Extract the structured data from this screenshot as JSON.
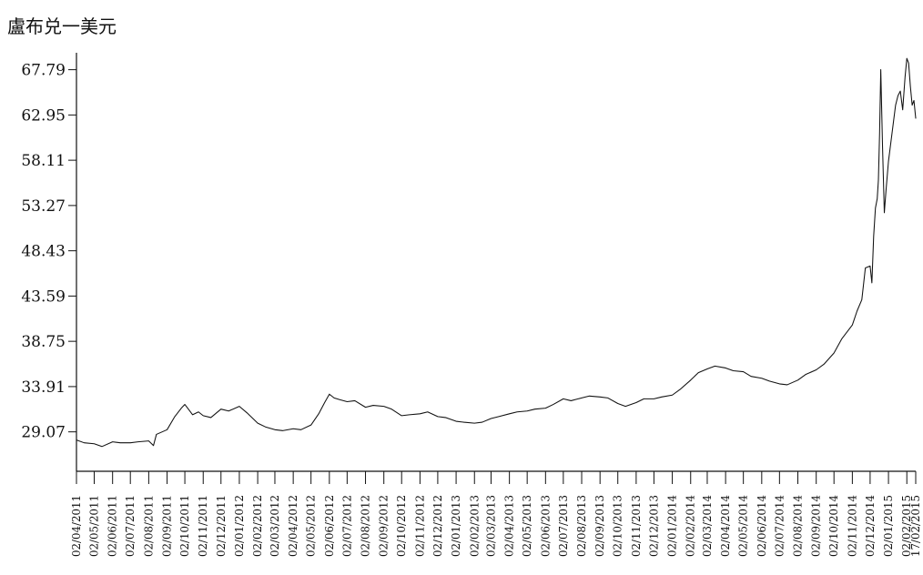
{
  "chart_data": {
    "type": "line",
    "title": "盧布兑一美元",
    "xlabel": "",
    "ylabel": "",
    "ylim": [
      26.8,
      69.6
    ],
    "grid": false,
    "legend": "none",
    "y_ticks": [
      "67.79",
      "62.95",
      "58.11",
      "53.27",
      "48.43",
      "43.59",
      "38.75",
      "33.91",
      "29.07"
    ],
    "x_ticks": [
      "02/04/2011",
      "02/05/2011",
      "02/06/2011",
      "02/07/2011",
      "02/08/2011",
      "02/09/2011",
      "02/10/2011",
      "02/11/2011",
      "02/12/2011",
      "02/01/2012",
      "02/02/2012",
      "02/03/2012",
      "02/04/2012",
      "02/05/2012",
      "02/06/2012",
      "02/07/2012",
      "02/08/2012",
      "02/09/2012",
      "02/10/2012",
      "02/11/2012",
      "02/12/2012",
      "02/01/2013",
      "02/02/2013",
      "02/03/2013",
      "02/04/2013",
      "02/05/2013",
      "02/06/2013",
      "02/07/2013",
      "02/08/2013",
      "02/09/2013",
      "02/10/2013",
      "02/11/2013",
      "02/12/2013",
      "02/01/2014",
      "02/02/2014",
      "02/03/2014",
      "02/04/2014",
      "02/05/2014",
      "02/06/2014",
      "02/07/2014",
      "02/08/2014",
      "02/09/2014",
      "02/10/2014",
      "02/11/2014",
      "02/12/2014",
      "02/01/2015",
      "02/02/2015",
      "17/02/2015"
    ],
    "x": [
      "02/04/2011",
      "15/04/2011",
      "02/05/2011",
      "15/05/2011",
      "02/06/2011",
      "15/06/2011",
      "02/07/2011",
      "15/07/2011",
      "02/08/2011",
      "10/08/2011",
      "15/08/2011",
      "02/09/2011",
      "15/09/2011",
      "26/09/2011",
      "02/10/2011",
      "08/10/2011",
      "15/10/2011",
      "25/10/2011",
      "02/11/2011",
      "15/11/2011",
      "02/12/2011",
      "15/12/2011",
      "02/01/2012",
      "15/01/2012",
      "02/02/2012",
      "15/02/2012",
      "02/03/2012",
      "15/03/2012",
      "02/04/2012",
      "15/04/2012",
      "02/05/2012",
      "15/05/2012",
      "25/05/2012",
      "02/06/2012",
      "10/06/2012",
      "20/06/2012",
      "02/07/2012",
      "15/07/2012",
      "02/08/2012",
      "15/08/2012",
      "02/09/2012",
      "15/09/2012",
      "02/10/2012",
      "15/10/2012",
      "02/11/2012",
      "15/11/2012",
      "02/12/2012",
      "15/12/2012",
      "02/01/2013",
      "15/01/2013",
      "02/02/2013",
      "15/02/2013",
      "02/03/2013",
      "15/03/2013",
      "02/04/2013",
      "15/04/2013",
      "02/05/2013",
      "15/05/2013",
      "02/06/2013",
      "15/06/2013",
      "02/07/2013",
      "15/07/2013",
      "02/08/2013",
      "15/08/2013",
      "02/09/2013",
      "15/09/2013",
      "02/10/2013",
      "15/10/2013",
      "02/11/2013",
      "15/11/2013",
      "02/12/2013",
      "15/12/2013",
      "02/01/2014",
      "15/01/2014",
      "02/02/2014",
      "15/02/2014",
      "02/03/2014",
      "15/03/2014",
      "02/04/2014",
      "15/04/2014",
      "02/05/2014",
      "15/05/2014",
      "02/06/2014",
      "15/06/2014",
      "02/07/2014",
      "15/07/2014",
      "02/08/2014",
      "15/08/2014",
      "02/09/2014",
      "15/09/2014",
      "02/10/2014",
      "15/10/2014",
      "02/11/2014",
      "10/11/2014",
      "18/11/2014",
      "24/11/2014",
      "02/12/2014",
      "05/12/2014",
      "08/12/2014",
      "11/12/2014",
      "14/12/2014",
      "16/12/2014",
      "18/12/2014",
      "20/12/2014",
      "23/12/2014",
      "26/12/2014",
      "29/12/2014",
      "02/01/2015",
      "06/01/2015",
      "10/01/2015",
      "14/01/2015",
      "18/01/2015",
      "22/01/2015",
      "26/01/2015",
      "30/01/2015",
      "02/02/2015",
      "05/02/2015",
      "08/02/2015",
      "11/02/2015",
      "14/02/2015",
      "17/02/2015"
    ],
    "values": [
      28.2,
      27.9,
      27.8,
      27.5,
      28.0,
      27.9,
      27.9,
      28.0,
      28.1,
      27.6,
      28.8,
      29.3,
      30.7,
      31.6,
      32.0,
      31.5,
      30.9,
      31.2,
      30.8,
      30.6,
      31.5,
      31.3,
      31.8,
      31.1,
      30.0,
      29.6,
      29.3,
      29.2,
      29.4,
      29.3,
      29.8,
      31.0,
      32.2,
      33.1,
      32.7,
      32.5,
      32.3,
      32.4,
      31.7,
      31.9,
      31.8,
      31.5,
      30.8,
      30.9,
      31.0,
      31.2,
      30.7,
      30.6,
      30.2,
      30.1,
      30.0,
      30.1,
      30.5,
      30.7,
      31.0,
      31.2,
      31.3,
      31.5,
      31.6,
      32.0,
      32.6,
      32.4,
      32.7,
      32.9,
      32.8,
      32.7,
      32.1,
      31.8,
      32.2,
      32.6,
      32.6,
      32.8,
      33.0,
      33.6,
      34.6,
      35.4,
      35.8,
      36.1,
      35.9,
      35.6,
      35.5,
      35.0,
      34.8,
      34.5,
      34.2,
      34.1,
      34.6,
      35.2,
      35.7,
      36.3,
      37.5,
      39.0,
      40.5,
      42.0,
      43.2,
      46.6,
      46.8,
      45.0,
      50.0,
      53.0,
      54.0,
      56.0,
      61.0,
      67.8,
      59.5,
      52.5,
      55.0,
      58.0,
      60.0,
      62.0,
      64.0,
      65.0,
      65.5,
      63.5,
      67.0,
      69.0,
      68.5,
      66.0,
      64.0,
      64.5,
      62.6
    ]
  }
}
